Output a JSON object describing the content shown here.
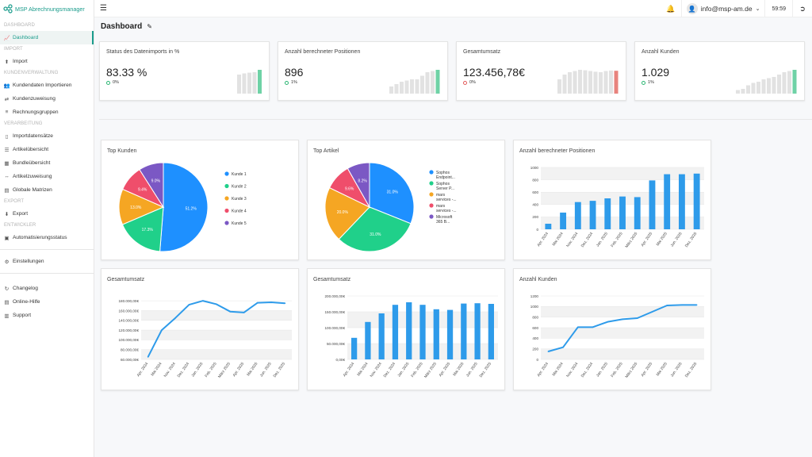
{
  "app": {
    "name": "MSP Abrechnungsmanager"
  },
  "sidebar": {
    "sections": [
      {
        "title": "DASHBOARD",
        "items": [
          {
            "label": "Dashboard",
            "icon": "chart-icon",
            "active": true
          }
        ]
      },
      {
        "title": "IMPORT",
        "items": [
          {
            "label": "Import",
            "icon": "upload-icon"
          }
        ]
      },
      {
        "title": "KUNDENVERWALTUNG",
        "items": [
          {
            "label": "Kundendaten Importieren",
            "icon": "people-icon"
          },
          {
            "label": "Kundenzuweisung",
            "icon": "assign-icon"
          },
          {
            "label": "Rechnungsgruppen",
            "icon": "group-icon"
          }
        ]
      },
      {
        "title": "VERARBEITUNG",
        "items": [
          {
            "label": "Importdatensätze",
            "icon": "records-icon"
          },
          {
            "label": "Artikelübersicht",
            "icon": "list-icon"
          },
          {
            "label": "Bundleübersicht",
            "icon": "bundle-icon"
          },
          {
            "label": "Artikelzuweisung",
            "icon": "arrow-icon"
          },
          {
            "label": "Globale Matrizen",
            "icon": "matrix-icon"
          }
        ]
      },
      {
        "title": "EXPORT",
        "items": [
          {
            "label": "Export",
            "icon": "download-icon"
          }
        ]
      },
      {
        "title": "ENTWICKLER",
        "items": [
          {
            "label": "Automatisierungsstatus",
            "icon": "status-icon"
          }
        ]
      }
    ],
    "settings": {
      "label": "Einstellungen",
      "icon": "gear-icon"
    },
    "footer": [
      {
        "label": "Changelog",
        "icon": "changelog-icon"
      },
      {
        "label": "Online-Hilfe",
        "icon": "help-icon"
      },
      {
        "label": "Support",
        "icon": "support-icon"
      }
    ]
  },
  "topbar": {
    "user": "info@msp-am.de",
    "timer": "59:59"
  },
  "page": {
    "title": "Dashboard"
  },
  "kpis": [
    {
      "label": "Status des Datenimports in %",
      "value": "83.33 %",
      "delta": "0%",
      "trend": "up",
      "spark": [
        0.8,
        0.85,
        0.88,
        0.9,
        1.0
      ],
      "spark_color": "#6fd2a6"
    },
    {
      "label": "Anzahl berechneter Positionen",
      "value": "896",
      "delta": "1%",
      "trend": "up",
      "spark": [
        0.3,
        0.4,
        0.5,
        0.55,
        0.6,
        0.6,
        0.75,
        0.9,
        0.95,
        1.0
      ],
      "spark_color": "#6fd2a6"
    },
    {
      "label": "Gesamtumsatz",
      "value": "123.456,78€",
      "delta": "0%",
      "trend": "down",
      "spark": [
        0.6,
        0.8,
        0.9,
        0.95,
        1.0,
        0.98,
        0.95,
        0.92,
        0.9,
        0.95,
        0.97,
        0.96
      ],
      "spark_color": "#e8837d"
    },
    {
      "label": "Anzahl Kunden",
      "value": "1.029",
      "delta": "1%",
      "trend": "up",
      "spark": [
        0.15,
        0.2,
        0.35,
        0.45,
        0.5,
        0.6,
        0.65,
        0.7,
        0.8,
        0.9,
        0.95,
        1.0
      ],
      "spark_color": "#6fd2a6"
    }
  ],
  "chart_data": [
    {
      "type": "pie",
      "title": "Top Kunden",
      "labels": [
        "Kunde 1",
        "Kunde 2",
        "Kunde 3",
        "Kunde 4",
        "Kunde 5"
      ],
      "values": [
        51.2,
        17.3,
        13.0,
        9.4,
        9.0
      ],
      "value_labels": [
        "51.2%",
        "17.3%",
        "13.0%",
        "9.4%",
        "9.0%"
      ],
      "colors": [
        "#1e90ff",
        "#20d08a",
        "#f5a623",
        "#ef4e6b",
        "#7b58c4"
      ]
    },
    {
      "type": "pie",
      "title": "Top Artikel",
      "labels": [
        "Sophos Endpoint...",
        "Sophos Server P...",
        "mars services -...",
        "mars services -...",
        "Microsoft 365 B..."
      ],
      "values": [
        31.0,
        31.0,
        20.0,
        9.6,
        8.2
      ],
      "value_labels": [
        "31.0%",
        "31.0%",
        "20.0%",
        "9.6%",
        "8.2%"
      ],
      "colors": [
        "#1e90ff",
        "#20d08a",
        "#f5a623",
        "#ef4e6b",
        "#7b58c4"
      ]
    },
    {
      "type": "bar",
      "title": "Anzahl berechneter Positionen",
      "categories": [
        "Apr. 2024",
        "Mai 2024",
        "Nov. 2024",
        "Dez. 2024",
        "Jan. 2025",
        "Feb. 2025",
        "März 2025",
        "Apr. 2025",
        "Mai 2025",
        "Jun. 2025",
        "Dez. 2025"
      ],
      "values": [
        90,
        270,
        440,
        460,
        500,
        530,
        520,
        790,
        890,
        890,
        900
      ],
      "ylim": [
        0,
        1000
      ],
      "yticks": [
        0,
        200,
        400,
        600,
        800,
        1000
      ],
      "ytick_labels": [
        "0",
        "200",
        "400",
        "600",
        "800",
        "1000"
      ],
      "color": "#2e9bea"
    },
    {
      "type": "line",
      "title": "Gesamtumsatz",
      "categories": [
        "Apr. 2024",
        "Mai 2024",
        "Nov. 2024",
        "Dez. 2024",
        "Jan. 2025",
        "Feb. 2025",
        "März 2025",
        "Apr. 2025",
        "Mai 2025",
        "Jun. 2025",
        "Dez. 2025"
      ],
      "values": [
        65000,
        120000,
        145000,
        172000,
        180000,
        173000,
        158000,
        156000,
        176000,
        177000,
        175000
      ],
      "ylim": [
        60000,
        190000
      ],
      "yticks": [
        60000,
        80000,
        100000,
        120000,
        140000,
        160000,
        180000
      ],
      "ytick_labels": [
        "60.000,00€",
        "80.000,00€",
        "100.000,00€",
        "120.000,00€",
        "140.000,00€",
        "160.000,00€",
        "180.000,00€"
      ],
      "color": "#2e9bea"
    },
    {
      "type": "bar",
      "title": "Gesamtumsatz",
      "categories": [
        "Apr. 2024",
        "Mai 2024",
        "Nov. 2024",
        "Dez. 2024",
        "Jan. 2025",
        "Feb. 2025",
        "März 2025",
        "Apr. 2025",
        "Mai 2025",
        "Jun. 2025",
        "Dez. 2025"
      ],
      "values": [
        68000,
        118000,
        145000,
        172000,
        180000,
        172000,
        158000,
        156000,
        176000,
        177000,
        175000
      ],
      "ylim": [
        0,
        200000
      ],
      "yticks": [
        0,
        50000,
        100000,
        150000,
        200000
      ],
      "ytick_labels": [
        "0,00€",
        "50.000,00€",
        "100.000,00€",
        "150.000,00€",
        "200.000,00€"
      ],
      "color": "#2e9bea"
    },
    {
      "type": "line",
      "title": "Anzahl Kunden",
      "categories": [
        "Apr. 2024",
        "Mai 2024",
        "Nov. 2024",
        "Dez. 2024",
        "Jan. 2025",
        "Feb. 2025",
        "März 2025",
        "Apr. 2025",
        "Mai 2025",
        "Jun. 2025",
        "Dez. 2025"
      ],
      "values": [
        150,
        230,
        610,
        610,
        710,
        760,
        780,
        900,
        1020,
        1030,
        1030
      ],
      "ylim": [
        0,
        1200
      ],
      "yticks": [
        0,
        200,
        400,
        600,
        800,
        1000,
        1200
      ],
      "ytick_labels": [
        "0",
        "200",
        "400",
        "600",
        "800",
        "1000",
        "1200"
      ],
      "color": "#2e9bea"
    }
  ]
}
